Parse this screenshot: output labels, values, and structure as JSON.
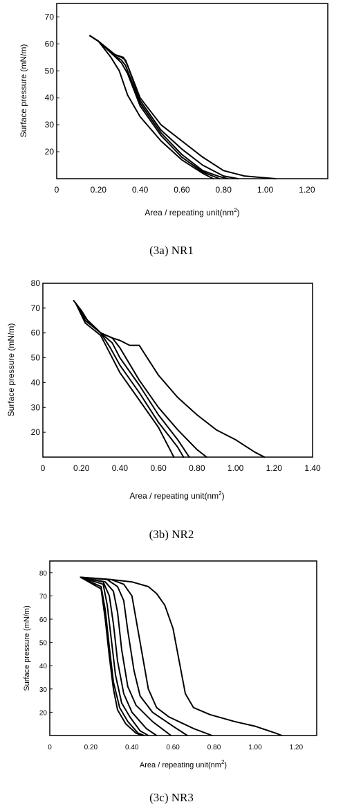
{
  "chart_data": [
    {
      "type": "line",
      "caption": "(3a) NR1",
      "xlabel": "Area / repeating unit(nm",
      "xlabel_sup": "2",
      "xlabel_end": ")",
      "ylabel": "Surface pressure (mN/m)",
      "xlim": [
        0,
        1.3
      ],
      "ylim": [
        10,
        75
      ],
      "xticks": [
        "0",
        "0.20",
        "0.40",
        "0.60",
        "0.80",
        "1.00",
        "1.20"
      ],
      "xtick_values": [
        0,
        0.2,
        0.4,
        0.6,
        0.8,
        1.0,
        1.2
      ],
      "yticks": [
        "20",
        "30",
        "40",
        "50",
        "60",
        "70"
      ],
      "ytick_values": [
        20,
        30,
        40,
        50,
        60,
        70
      ],
      "series": [
        {
          "x": [
            0.16,
            0.2,
            0.28,
            0.31,
            0.33,
            0.4,
            0.5,
            0.6,
            0.7,
            0.8,
            0.9,
            1.0,
            1.05
          ],
          "y": [
            63,
            61,
            56,
            55,
            54,
            40,
            30,
            24,
            18,
            13,
            11,
            10.3,
            10
          ]
        },
        {
          "x": [
            0.16,
            0.2,
            0.28,
            0.32,
            0.34,
            0.4,
            0.5,
            0.6,
            0.7,
            0.8,
            0.87
          ],
          "y": [
            63,
            61,
            56,
            55,
            52,
            39,
            28,
            21,
            15,
            11,
            10
          ]
        },
        {
          "x": [
            0.16,
            0.2,
            0.27,
            0.31,
            0.33,
            0.4,
            0.5,
            0.6,
            0.7,
            0.78,
            0.82
          ],
          "y": [
            63,
            61,
            56,
            54,
            52,
            38,
            27,
            19,
            13,
            10.8,
            10
          ]
        },
        {
          "x": [
            0.16,
            0.2,
            0.27,
            0.31,
            0.34,
            0.4,
            0.5,
            0.6,
            0.7,
            0.78
          ],
          "y": [
            63,
            61,
            56,
            53,
            49,
            37,
            26,
            18,
            12.5,
            10
          ]
        },
        {
          "x": [
            0.16,
            0.2,
            0.26,
            0.3,
            0.34,
            0.4,
            0.5,
            0.6,
            0.7,
            0.75
          ],
          "y": [
            63,
            61,
            55,
            50,
            41,
            33,
            24,
            17,
            12,
            10
          ]
        }
      ]
    },
    {
      "type": "line",
      "caption": "(3b) NR2",
      "xlabel": "Area / repeating unit(nm",
      "xlabel_sup": "2",
      "xlabel_end": ")",
      "ylabel": "Surface pressure (mN/m)",
      "xlim": [
        0,
        1.4
      ],
      "ylim": [
        10,
        80
      ],
      "xticks": [
        "0",
        "0.20",
        "0.40",
        "0.60",
        "0.80",
        "1.00",
        "1.20",
        "1.40"
      ],
      "xtick_values": [
        0,
        0.2,
        0.4,
        0.6,
        0.8,
        1.0,
        1.2,
        1.4
      ],
      "yticks": [
        "20",
        "30",
        "40",
        "50",
        "60",
        "70",
        "80"
      ],
      "ytick_values": [
        20,
        30,
        40,
        50,
        60,
        70,
        80
      ],
      "series": [
        {
          "x": [
            0.16,
            0.2,
            0.24,
            0.3,
            0.36,
            0.4,
            0.45,
            0.5,
            0.55,
            0.6,
            0.7,
            0.8,
            0.9,
            1.0,
            1.1,
            1.15
          ],
          "y": [
            73,
            69,
            64,
            60,
            58,
            57,
            55,
            55,
            49,
            43,
            34,
            27,
            21,
            17,
            12,
            10
          ]
        },
        {
          "x": [
            0.17,
            0.22,
            0.3,
            0.36,
            0.4,
            0.5,
            0.6,
            0.7,
            0.8,
            0.85
          ],
          "y": [
            72,
            66,
            60,
            58,
            54,
            41,
            30,
            21,
            13,
            10
          ]
        },
        {
          "x": [
            0.17,
            0.22,
            0.3,
            0.36,
            0.4,
            0.5,
            0.6,
            0.7,
            0.76
          ],
          "y": [
            72,
            66,
            60,
            56,
            50,
            39,
            27,
            17,
            10
          ]
        },
        {
          "x": [
            0.17,
            0.22,
            0.3,
            0.35,
            0.4,
            0.5,
            0.6,
            0.7,
            0.73
          ],
          "y": [
            72,
            65,
            60,
            54,
            47,
            36,
            24,
            14,
            10
          ]
        },
        {
          "x": [
            0.17,
            0.22,
            0.3,
            0.34,
            0.4,
            0.5,
            0.6,
            0.68
          ],
          "y": [
            72,
            64,
            59,
            53,
            44,
            33,
            22,
            10
          ]
        }
      ]
    },
    {
      "type": "line",
      "caption": "(3c) NR3",
      "xlabel": "Area / repeating unit(nm",
      "xlabel_sup": "2",
      "xlabel_end": ")",
      "ylabel": "Surface pressure (mN/m)",
      "xlim": [
        0,
        1.3
      ],
      "ylim": [
        10,
        85
      ],
      "xticks": [
        "0",
        "0.20",
        "0.40",
        "0.60",
        "0.80",
        "1.00",
        "1.20"
      ],
      "xtick_values": [
        0,
        0.2,
        0.4,
        0.6,
        0.8,
        1.0,
        1.2
      ],
      "yticks": [
        "20",
        "30",
        "40",
        "50",
        "60",
        "70",
        "80"
      ],
      "ytick_values": [
        20,
        30,
        40,
        50,
        60,
        70,
        80
      ],
      "series": [
        {
          "x": [
            0.15,
            0.3,
            0.4,
            0.48,
            0.52,
            0.56,
            0.6,
            0.63,
            0.66,
            0.7,
            0.78,
            0.9,
            1.0,
            1.1,
            1.13
          ],
          "y": [
            78,
            77,
            76,
            74,
            71,
            66,
            56,
            42,
            28,
            22,
            19,
            16,
            14,
            11,
            10
          ]
        },
        {
          "x": [
            0.15,
            0.3,
            0.36,
            0.4,
            0.42,
            0.45,
            0.48,
            0.52,
            0.58,
            0.7,
            0.79
          ],
          "y": [
            78,
            77,
            75,
            70,
            60,
            45,
            30,
            22,
            18,
            13,
            10
          ]
        },
        {
          "x": [
            0.15,
            0.28,
            0.33,
            0.36,
            0.38,
            0.41,
            0.44,
            0.5,
            0.6,
            0.67
          ],
          "y": [
            78,
            77,
            74,
            68,
            55,
            38,
            27,
            20,
            14,
            10
          ]
        },
        {
          "x": [
            0.15,
            0.27,
            0.31,
            0.33,
            0.35,
            0.38,
            0.42,
            0.5,
            0.59
          ],
          "y": [
            78,
            76,
            72,
            63,
            47,
            31,
            23,
            16,
            10
          ]
        },
        {
          "x": [
            0.15,
            0.26,
            0.29,
            0.31,
            0.33,
            0.36,
            0.4,
            0.47,
            0.52
          ],
          "y": [
            78,
            76,
            70,
            58,
            42,
            28,
            20,
            13,
            10
          ]
        },
        {
          "x": [
            0.15,
            0.26,
            0.28,
            0.3,
            0.32,
            0.35,
            0.39,
            0.44,
            0.48
          ],
          "y": [
            78,
            75,
            66,
            51,
            36,
            24,
            18,
            12,
            10
          ]
        },
        {
          "x": [
            0.15,
            0.25,
            0.27,
            0.29,
            0.31,
            0.34,
            0.38,
            0.43,
            0.46
          ],
          "y": [
            78,
            74,
            64,
            48,
            33,
            22,
            16,
            11,
            10
          ]
        },
        {
          "x": [
            0.15,
            0.25,
            0.27,
            0.29,
            0.31,
            0.33,
            0.37,
            0.42,
            0.45
          ],
          "y": [
            78,
            73,
            60,
            44,
            30,
            21,
            15,
            11,
            10
          ]
        }
      ]
    }
  ]
}
